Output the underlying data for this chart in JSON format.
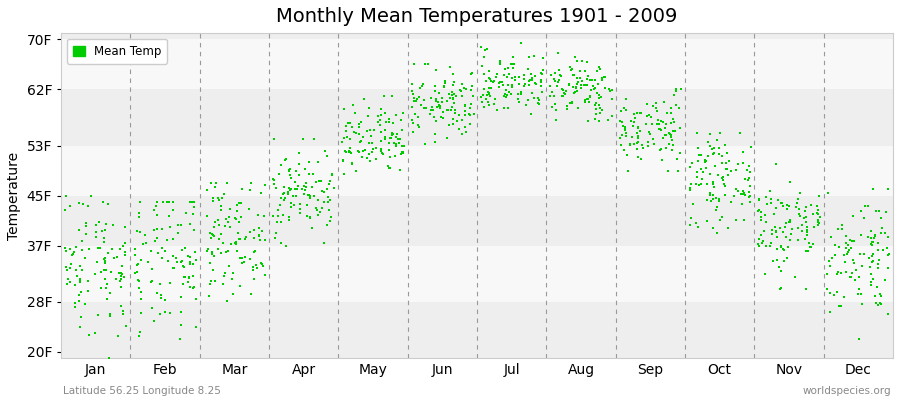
{
  "title": "Monthly Mean Temperatures 1901 - 2009",
  "ylabel": "Temperature",
  "ytick_labels": [
    "20F",
    "28F",
    "37F",
    "45F",
    "53F",
    "62F",
    "70F"
  ],
  "ytick_values": [
    20,
    28,
    37,
    45,
    53,
    62,
    70
  ],
  "ylim": [
    19,
    71
  ],
  "months": [
    "Jan",
    "Feb",
    "Mar",
    "Apr",
    "May",
    "Jun",
    "Jul",
    "Aug",
    "Sep",
    "Oct",
    "Nov",
    "Dec"
  ],
  "dot_color": "#00CC00",
  "dot_size": 3,
  "background_color": "#ffffff",
  "plot_bg_color": "#eeeeee",
  "band_colors": [
    "#eeeeee",
    "#f8f8f8"
  ],
  "title_fontsize": 14,
  "axis_fontsize": 10,
  "legend_label": "Mean Temp",
  "bottom_left_text": "Latitude 56.25 Longitude 8.25",
  "bottom_right_text": "worldspecies.org",
  "monthly_means_F": [
    34.5,
    34.0,
    38.5,
    45.5,
    53.5,
    59.5,
    63.0,
    62.0,
    55.5,
    47.5,
    40.0,
    35.5
  ],
  "monthly_stds_F": [
    6.0,
    6.0,
    4.5,
    3.5,
    3.0,
    2.8,
    2.5,
    2.5,
    3.0,
    3.5,
    4.0,
    5.0
  ],
  "monthly_mins_F": [
    19,
    19,
    26,
    37,
    46,
    53,
    57,
    57,
    49,
    39,
    30,
    22
  ],
  "monthly_maxs_F": [
    45,
    44,
    47,
    54,
    61,
    66,
    70,
    68,
    62,
    55,
    50,
    46
  ]
}
